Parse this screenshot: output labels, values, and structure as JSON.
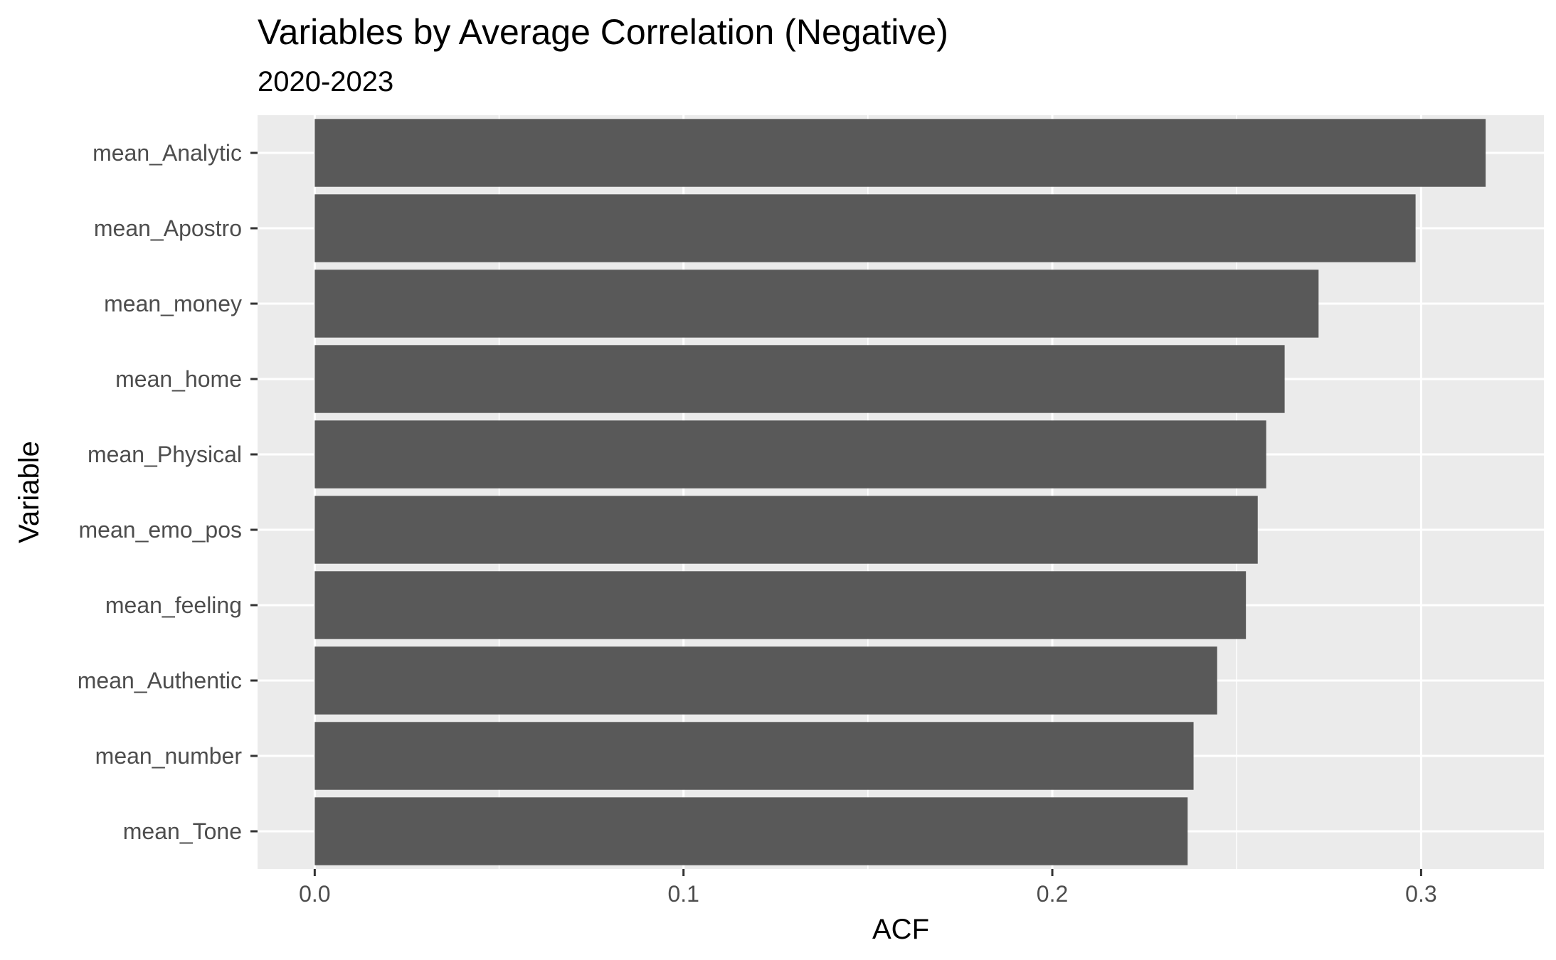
{
  "chart_data": {
    "type": "bar",
    "orientation": "horizontal",
    "title": "Variables by Average Correlation (Negative)",
    "subtitle": "2020-2023",
    "xlabel": "ACF",
    "ylabel": "Variable",
    "categories": [
      "mean_Analytic",
      "mean_Apostro",
      "mean_money",
      "mean_home",
      "mean_Physical",
      "mean_emo_pos",
      "mean_feeling",
      "mean_Authentic",
      "mean_number",
      "mean_Tone"
    ],
    "values": [
      0.3175,
      0.2985,
      0.2722,
      0.263,
      0.258,
      0.2557,
      0.2525,
      0.2447,
      0.2383,
      0.2367
    ],
    "xlim": [
      -0.0155,
      0.3333
    ],
    "xticks": [
      "0.0",
      "0.1",
      "0.2",
      "0.3"
    ],
    "xtick_values": [
      0,
      0.1,
      0.2,
      0.3
    ],
    "grid": true,
    "legend": "none",
    "colors": {
      "bar": "#595959",
      "panel": "#ebebeb",
      "grid": "#ffffff"
    }
  }
}
